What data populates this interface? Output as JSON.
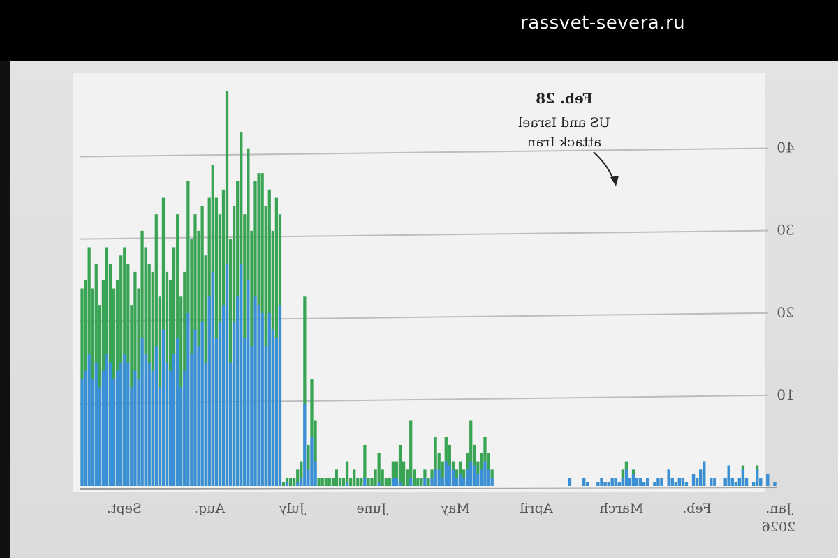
{
  "site": {
    "label": "rassvet-severa.ru"
  },
  "chart_data": {
    "type": "bar",
    "mirrored": true,
    "stacked": true,
    "annotation": {
      "date": "Feb. 28",
      "lines": [
        "US and Israel",
        "attack Iran"
      ]
    },
    "y_ticks": [
      "10",
      "20",
      "30",
      "40"
    ],
    "ylim": [
      0,
      48
    ],
    "grid": true,
    "x_labels": [
      "Jan.",
      "Feb.",
      "March",
      "April",
      "May",
      "June",
      "July",
      "Aug.",
      "Sept."
    ],
    "year_label": "2026",
    "colors": {
      "blue": "#3a8fd6",
      "green": "#3aa455",
      "grid": "#bdbdbd"
    },
    "series": [
      {
        "values": [
          0.5,
          0,
          1.5,
          0,
          1,
          2,
          0.5,
          0,
          1,
          2,
          1,
          0.5,
          1,
          2.5,
          1,
          0,
          0,
          1,
          1,
          0,
          3,
          2,
          1,
          1.5,
          0,
          0.5,
          1,
          1,
          0.5,
          1,
          2,
          0,
          1,
          1,
          0.5,
          0,
          1,
          0.5,
          1,
          1,
          1.5,
          1,
          2,
          1,
          0.5,
          1,
          1,
          0.5,
          0.5,
          1,
          0.5,
          0,
          0,
          0.5,
          1,
          0,
          0,
          0,
          1,
          0,
          0,
          0,
          0,
          0,
          0,
          0,
          0,
          0,
          0,
          0,
          0,
          0,
          0,
          0,
          0,
          0,
          0,
          0,
          0,
          0,
          1,
          2,
          3,
          2,
          1.5,
          2.5,
          3,
          2,
          1,
          1.5,
          1,
          2,
          2.5,
          3,
          1,
          2,
          2,
          1,
          0,
          1,
          0,
          0,
          0,
          1,
          0,
          0,
          0.5,
          1,
          1,
          0,
          0,
          0,
          0.5,
          0,
          0,
          0,
          1,
          0,
          0,
          0,
          0,
          0.5,
          0,
          0,
          0,
          0,
          0,
          0,
          0,
          0,
          3,
          6,
          2,
          10,
          1,
          0.5,
          0,
          0,
          0.5,
          0,
          22,
          18,
          19,
          21,
          17,
          21,
          22,
          23,
          17,
          25,
          18,
          27,
          23,
          20,
          15,
          27,
          22,
          20,
          18,
          26,
          23,
          15,
          20,
          17,
          19,
          16,
          21,
          14,
          12,
          18,
          16,
          14,
          15,
          19,
          12,
          17,
          14,
          15,
          16,
          18,
          13,
          14,
          12,
          15,
          16,
          15,
          14,
          13,
          15,
          16,
          14,
          12,
          15,
          13,
          16,
          14,
          13
        ],
        "values_top": [
          0.5,
          0,
          1.5,
          0,
          1,
          2.5,
          0.5,
          0,
          1,
          2.5,
          1,
          0.5,
          1,
          2.5,
          1,
          0,
          0,
          1,
          1,
          0,
          3,
          2,
          1,
          1.5,
          0,
          0.5,
          1,
          1,
          0.5,
          1,
          2,
          0,
          1,
          1,
          0.5,
          0,
          1,
          0.5,
          1,
          1,
          2,
          1,
          3,
          2,
          0.5,
          1,
          1,
          0.5,
          0.5,
          1,
          0.5,
          0,
          0,
          0.5,
          1,
          0,
          0,
          0,
          1,
          0,
          0,
          0,
          0,
          0,
          0,
          0,
          0,
          0,
          0,
          0,
          0,
          0,
          0,
          0,
          0,
          0,
          0,
          0,
          0,
          0,
          2,
          4,
          6,
          4,
          3,
          5,
          8,
          4,
          2,
          3,
          2,
          3,
          5,
          6,
          3,
          4,
          6,
          2,
          1,
          2,
          1,
          1,
          2,
          8,
          2,
          3,
          5,
          3,
          3,
          1,
          1,
          2,
          4,
          2,
          1,
          1,
          5,
          1,
          1,
          2,
          1,
          3,
          1,
          1,
          2,
          1,
          1,
          1,
          1,
          1,
          8,
          13,
          5,
          23,
          3,
          2,
          1,
          1,
          1,
          0.5,
          33,
          35,
          31,
          36,
          34,
          38,
          38,
          37,
          31,
          41,
          33,
          43,
          37,
          34,
          30,
          48,
          36,
          33,
          35,
          39,
          35,
          28,
          34,
          31,
          33,
          30,
          37,
          26,
          23,
          33,
          29,
          25,
          26,
          35,
          23,
          33,
          26,
          27,
          29,
          31,
          24,
          26,
          22,
          27,
          29,
          28,
          25,
          24,
          27,
          29,
          25,
          22,
          27,
          24,
          29,
          25,
          24
        ]
      }
    ]
  }
}
